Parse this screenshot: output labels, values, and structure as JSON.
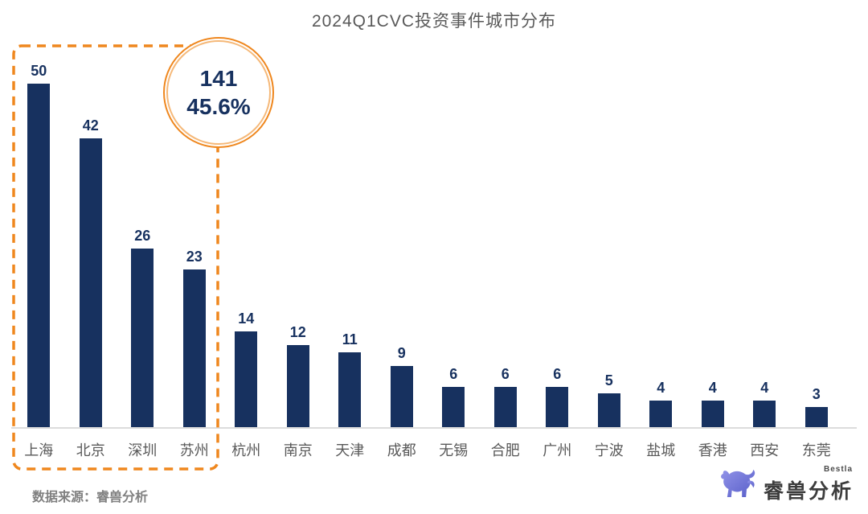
{
  "title": "2024Q1CVC投资事件城市分布",
  "source_note": "数据来源：睿兽分析",
  "annotation": {
    "total": "141",
    "percent": "45.6%"
  },
  "logo": {
    "brand": "睿兽分析",
    "sub_brand": "Bestla",
    "icon": "beast-logo-icon"
  },
  "colors": {
    "bar": "#17315F",
    "value_label": "#17315F",
    "title": "#595959",
    "axis_label": "#595959",
    "highlight_orange": "#EF871E",
    "circle_inner_ring": "#F5B878",
    "baseline": "#DCDCDC",
    "source": "#808080",
    "logo_purple": "#6B6FD6"
  },
  "chart_data": {
    "type": "bar",
    "title": "2024Q1CVC投资事件城市分布",
    "categories": [
      "上海",
      "北京",
      "深圳",
      "苏州",
      "杭州",
      "南京",
      "天津",
      "成都",
      "无锡",
      "合肥",
      "广州",
      "宁波",
      "盐城",
      "香港",
      "西安",
      "东莞"
    ],
    "values": [
      50,
      42,
      26,
      23,
      14,
      12,
      11,
      9,
      6,
      6,
      6,
      5,
      4,
      4,
      4,
      3
    ],
    "xlabel": "",
    "ylabel": "",
    "ylim": [
      0,
      55
    ],
    "grid": false,
    "legend": false,
    "value_labels": true,
    "y_axis_visible": false,
    "highlight_group": {
      "categories": [
        "上海",
        "北京",
        "深圳",
        "苏州"
      ],
      "total": 141,
      "share_percent": "45.6%",
      "style": "orange-dashed-box-with-circle-callout"
    }
  }
}
